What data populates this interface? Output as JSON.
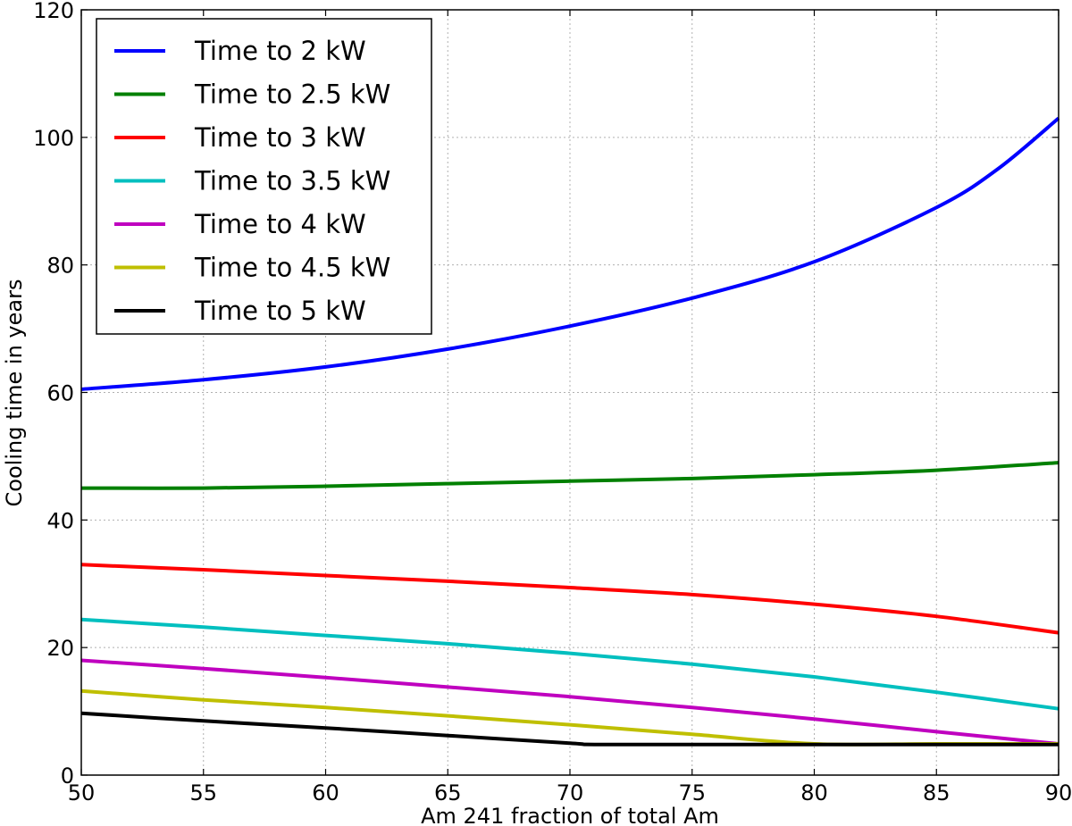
{
  "chart_data": {
    "type": "line",
    "title": "",
    "xlabel": "Am 241 fraction of total Am",
    "ylabel": "Cooling time in years",
    "xlim": [
      50,
      90
    ],
    "ylim": [
      0,
      120
    ],
    "xticks": [
      50,
      55,
      60,
      65,
      70,
      75,
      80,
      85,
      90
    ],
    "yticks": [
      0,
      20,
      40,
      60,
      80,
      100,
      120
    ],
    "grid": true,
    "legend_position": "top-left",
    "series": [
      {
        "name": "Time to 2 kW",
        "color": "#0000ff",
        "x": [
          50,
          55,
          60,
          65,
          70,
          75,
          80,
          85,
          87.5,
          90
        ],
        "y": [
          60.5,
          62,
          64,
          66.8,
          70.4,
          74.8,
          80.5,
          89,
          95,
          103
        ]
      },
      {
        "name": "Time to 2.5 kW",
        "color": "#008000",
        "x": [
          50,
          55,
          60,
          65,
          70,
          75,
          80,
          85,
          90
        ],
        "y": [
          45,
          45,
          45.3,
          45.7,
          46.1,
          46.5,
          47.1,
          47.8,
          49
        ]
      },
      {
        "name": "Time to 3 kW",
        "color": "#ff0000",
        "x": [
          50,
          55,
          60,
          65,
          70,
          75,
          80,
          85,
          90
        ],
        "y": [
          33,
          32.2,
          31.3,
          30.4,
          29.4,
          28.3,
          26.8,
          24.9,
          22.3
        ]
      },
      {
        "name": "Time to 3.5 kW",
        "color": "#00bfbf",
        "x": [
          50,
          55,
          60,
          65,
          70,
          75,
          80,
          85,
          90
        ],
        "y": [
          24.4,
          23.2,
          21.9,
          20.6,
          19.1,
          17.4,
          15.4,
          13,
          10.4
        ]
      },
      {
        "name": "Time to 4 kW",
        "color": "#bf00bf",
        "x": [
          50,
          55,
          60,
          65,
          70,
          75,
          80,
          85,
          90
        ],
        "y": [
          18,
          16.7,
          15.3,
          13.8,
          12.3,
          10.6,
          8.8,
          6.8,
          4.9
        ]
      },
      {
        "name": "Time to 4.5 kW",
        "color": "#bfbf00",
        "x": [
          50,
          55,
          60,
          65,
          70,
          75,
          80,
          85,
          90
        ],
        "y": [
          13.2,
          11.8,
          10.6,
          9.3,
          7.9,
          6.4,
          4.9,
          4.9,
          4.9
        ]
      },
      {
        "name": "Time to 5 kW",
        "color": "#000000",
        "x": [
          50,
          55,
          60,
          65,
          70,
          71,
          75,
          80,
          85,
          90
        ],
        "y": [
          9.7,
          8.5,
          7.4,
          6.2,
          5.0,
          4.8,
          4.8,
          4.8,
          4.8,
          4.8
        ]
      }
    ]
  }
}
